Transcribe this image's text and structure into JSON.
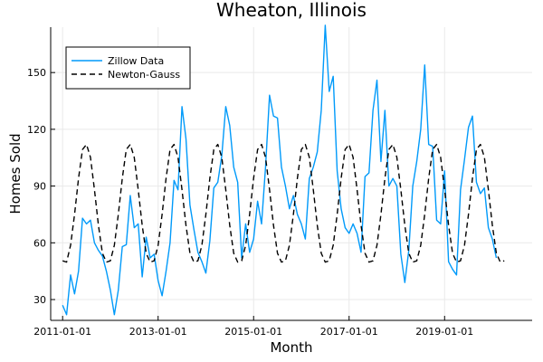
{
  "chart_data": {
    "type": "line",
    "title": "Wheaton, Illinois",
    "xlabel": "Month",
    "ylabel": "Homes Sold",
    "x_ticks": [
      "2011-01-01",
      "2013-01-01",
      "2015-01-01",
      "2017-01-01",
      "2019-01-01"
    ],
    "y_ticks": [
      30,
      60,
      90,
      120,
      150
    ],
    "xlim": [
      "2010-10-01",
      "2020-11-01"
    ],
    "ylim": [
      19,
      174
    ],
    "legend_position": "top-left",
    "grid": true,
    "series": [
      {
        "name": "Zillow Data",
        "color": "#009AFA",
        "style": "solid",
        "start": "2011-01-01",
        "interval": "month",
        "values": [
          27,
          22,
          43,
          33,
          45,
          73,
          70,
          72,
          60,
          56,
          53,
          45,
          35,
          22,
          35,
          58,
          59,
          85,
          68,
          70,
          42,
          63,
          52,
          54,
          40,
          32,
          45,
          60,
          93,
          88,
          132,
          115,
          80,
          67,
          55,
          50,
          44,
          61,
          89,
          92,
          106,
          132,
          122,
          100,
          92,
          52,
          70,
          55,
          62,
          82,
          70,
          100,
          138,
          127,
          126,
          100,
          90,
          78,
          85,
          75,
          70,
          62,
          94,
          100,
          108,
          130,
          175,
          140,
          148,
          98,
          78,
          68,
          65,
          70,
          65,
          55,
          95,
          97,
          130,
          146,
          103,
          130,
          90,
          94,
          90,
          54,
          39,
          56,
          90,
          103,
          120,
          154,
          112,
          111,
          72,
          70,
          98,
          50,
          46,
          43,
          88,
          104,
          121,
          127,
          92,
          86,
          89,
          68,
          62,
          52
        ]
      },
      {
        "name": "Newton-Gauss",
        "color": "#000000",
        "style": "dashed",
        "start": "2011-01-01",
        "interval": "month",
        "values": [
          50.5,
          49.8,
          58.7,
          75.0,
          94.1,
          109.3,
          112.0,
          105.2,
          88.1,
          69.3,
          54.5,
          49.8,
          50.5,
          58.7,
          75.0,
          94.1,
          109.3,
          112.0,
          105.2,
          88.1,
          69.3,
          54.5,
          49.8,
          50.5,
          58.7,
          75.0,
          94.1,
          109.3,
          112.0,
          105.2,
          88.1,
          69.3,
          54.5,
          49.8,
          50.5,
          58.7,
          75.0,
          94.1,
          109.3,
          112.0,
          105.2,
          88.1,
          69.3,
          54.5,
          49.8,
          50.5,
          58.7,
          75.0,
          94.1,
          109.3,
          112.0,
          105.2,
          88.1,
          69.3,
          54.5,
          49.8,
          50.5,
          58.7,
          75.0,
          94.1,
          109.3,
          112.0,
          105.2,
          88.1,
          69.3,
          54.5,
          49.8,
          50.5,
          58.7,
          75.0,
          94.1,
          109.3,
          112.0,
          105.2,
          88.1,
          69.3,
          54.5,
          49.8,
          50.5,
          58.7,
          75.0,
          94.1,
          109.3,
          112.0,
          105.2,
          88.1,
          69.3,
          54.5,
          49.8,
          50.5,
          58.7,
          75.0,
          94.1,
          109.3,
          112.0,
          105.2,
          88.1,
          69.3,
          54.5,
          49.8,
          50.5,
          58.7,
          75.0,
          94.1,
          109.3,
          112.0,
          105.2,
          88.1,
          69.3,
          54.5,
          49.8,
          50.5
        ]
      }
    ]
  }
}
